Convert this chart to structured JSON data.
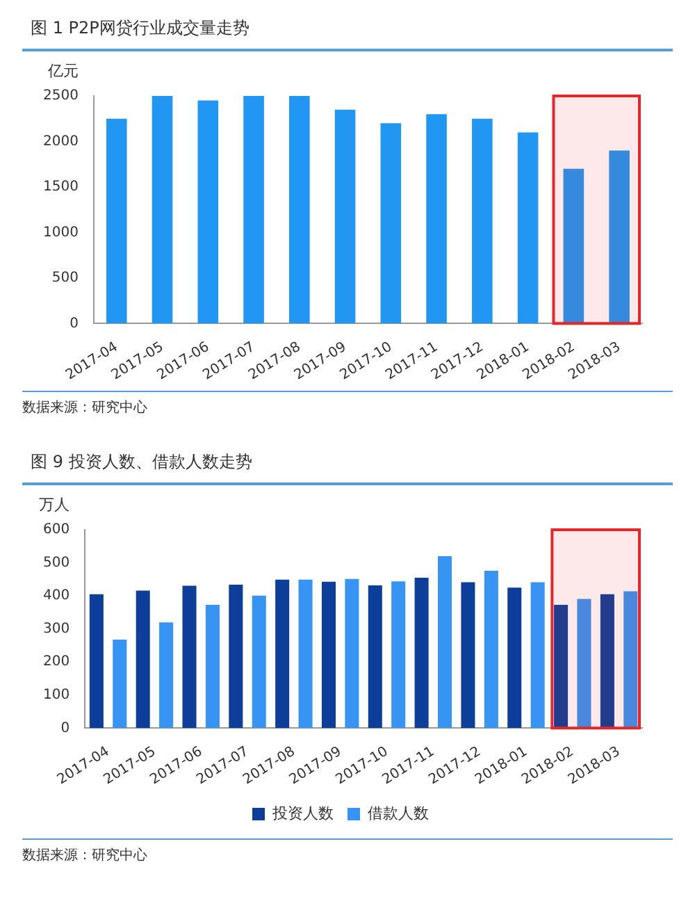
{
  "chart_data": [
    {
      "type": "bar",
      "title": "图 1   P2P网贷行业成交量走势",
      "ylabel": "亿元",
      "categories": [
        "2017-04",
        "2017-05",
        "2017-06",
        "2017-07",
        "2017-08",
        "2017-09",
        "2017-10",
        "2017-11",
        "2017-12",
        "2018-01",
        "2018-02",
        "2018-03"
      ],
      "values": [
        2250,
        2500,
        2450,
        2500,
        2500,
        2350,
        2200,
        2300,
        2250,
        2100,
        1700,
        1900
      ],
      "color": "#2196f3",
      "ylim": [
        0,
        2500
      ],
      "yticks": [
        0,
        500,
        1000,
        1500,
        2000,
        2500
      ],
      "grid": false,
      "legend": false,
      "bands": [
        {
          "axis": "x",
          "from": "2018-02",
          "to": "2018-03",
          "color": "#e8262a"
        }
      ],
      "annotations": [
        "数据来源：研究中心"
      ]
    },
    {
      "type": "bar",
      "title": "图 9   投资人数、借款人数走势",
      "ylabel": "万人",
      "categories": [
        "2017-04",
        "2017-05",
        "2017-06",
        "2017-07",
        "2017-08",
        "2017-09",
        "2017-10",
        "2017-11",
        "2017-12",
        "2018-01",
        "2018-02",
        "2018-03"
      ],
      "series": [
        {
          "name": "投资人数",
          "color": "#0d3f9a",
          "values": [
            405,
            416,
            431,
            434,
            449,
            443,
            432,
            455,
            441,
            425,
            373,
            405
          ]
        },
        {
          "name": "借款人数",
          "color": "#3794f2",
          "values": [
            268,
            320,
            373,
            401,
            449,
            451,
            444,
            520,
            476,
            441,
            391,
            414
          ]
        }
      ],
      "ylim": [
        0,
        600
      ],
      "yticks": [
        0,
        100,
        200,
        300,
        400,
        500,
        600
      ],
      "grid": false,
      "legend": "bottom",
      "bands": [
        {
          "axis": "x",
          "from": "2018-02",
          "to": "2018-03",
          "color": "#e8262a"
        }
      ],
      "annotations": [
        "数据来源：研究中心"
      ]
    }
  ]
}
